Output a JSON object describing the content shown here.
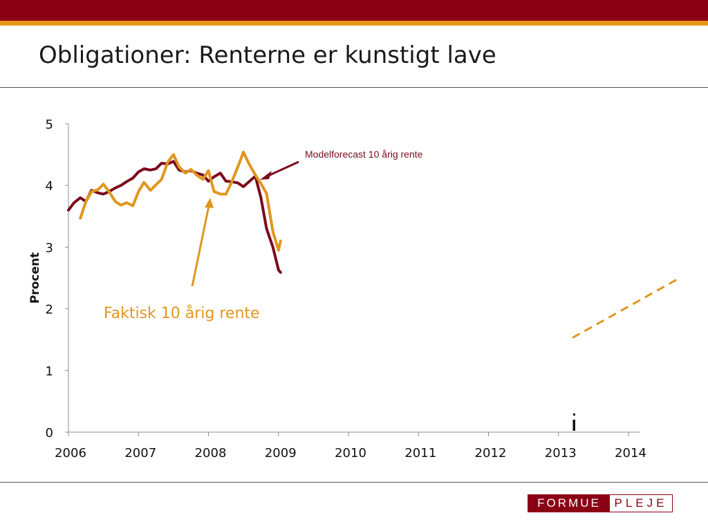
{
  "slide": {
    "title": "Obligationer: Renterne er kunstigt lave"
  },
  "colors": {
    "header_bar": "#8a0015",
    "header_stripe": "#e8951a",
    "model_series": "#7a0a1c",
    "actual_series": "#e0961e"
  },
  "logo": {
    "left_text": "FORMUE",
    "right_text": "PLEJE"
  },
  "chart_data": {
    "type": "line",
    "ylabel": "Procent",
    "xlabel": "",
    "xlim": [
      2006,
      2014
    ],
    "ylim": [
      0,
      5
    ],
    "x_ticks": [
      "2006",
      "2007",
      "2008",
      "2009",
      "2010",
      "2011",
      "2012",
      "2013",
      "2014"
    ],
    "y_ticks": [
      "0",
      "1",
      "2",
      "3",
      "4",
      "5"
    ],
    "grid": false,
    "series": [
      {
        "label_key": "model",
        "color": "#7a0a1c",
        "points": [
          [
            2006.0,
            3.6
          ],
          [
            2006.08,
            3.72
          ],
          [
            2006.17,
            3.8
          ],
          [
            2006.25,
            3.74
          ],
          [
            2006.33,
            3.92
          ],
          [
            2006.42,
            3.88
          ],
          [
            2006.5,
            3.86
          ],
          [
            2006.58,
            3.9
          ],
          [
            2006.67,
            3.96
          ],
          [
            2006.75,
            4.0
          ],
          [
            2006.83,
            4.06
          ],
          [
            2006.92,
            4.12
          ],
          [
            2007.0,
            4.22
          ],
          [
            2007.08,
            4.27
          ],
          [
            2007.17,
            4.25
          ],
          [
            2007.25,
            4.27
          ],
          [
            2007.33,
            4.36
          ],
          [
            2007.42,
            4.35
          ],
          [
            2007.5,
            4.39
          ],
          [
            2007.58,
            4.25
          ],
          [
            2007.67,
            4.22
          ],
          [
            2007.75,
            4.24
          ],
          [
            2007.83,
            4.2
          ],
          [
            2007.92,
            4.17
          ],
          [
            2008.0,
            4.07
          ],
          [
            2008.08,
            4.14
          ],
          [
            2008.17,
            4.2
          ],
          [
            2008.25,
            4.07
          ],
          [
            2008.33,
            4.06
          ],
          [
            2008.42,
            4.04
          ],
          [
            2008.5,
            3.98
          ],
          [
            2008.58,
            4.06
          ],
          [
            2008.67,
            4.15
          ],
          [
            2008.75,
            3.8
          ],
          [
            2008.83,
            3.3
          ],
          [
            2008.92,
            3.0
          ],
          [
            2009.0,
            2.63
          ],
          [
            2009.03,
            2.59
          ]
        ]
      },
      {
        "label_key": "actual",
        "color": "#e0961e",
        "points": [
          [
            2006.17,
            3.47
          ],
          [
            2006.25,
            3.74
          ],
          [
            2006.33,
            3.9
          ],
          [
            2006.42,
            3.93
          ],
          [
            2006.5,
            4.02
          ],
          [
            2006.58,
            3.9
          ],
          [
            2006.67,
            3.74
          ],
          [
            2006.75,
            3.68
          ],
          [
            2006.83,
            3.72
          ],
          [
            2006.92,
            3.67
          ],
          [
            2007.0,
            3.9
          ],
          [
            2007.08,
            4.05
          ],
          [
            2007.17,
            3.92
          ],
          [
            2007.25,
            4.01
          ],
          [
            2007.33,
            4.1
          ],
          [
            2007.42,
            4.38
          ],
          [
            2007.5,
            4.5
          ],
          [
            2007.58,
            4.3
          ],
          [
            2007.67,
            4.2
          ],
          [
            2007.75,
            4.26
          ],
          [
            2007.83,
            4.17
          ],
          [
            2007.92,
            4.1
          ],
          [
            2008.0,
            4.24
          ],
          [
            2008.08,
            3.9
          ],
          [
            2008.17,
            3.86
          ],
          [
            2008.25,
            3.86
          ],
          [
            2008.33,
            4.05
          ],
          [
            2008.42,
            4.3
          ],
          [
            2008.5,
            4.54
          ],
          [
            2008.58,
            4.35
          ],
          [
            2008.67,
            4.17
          ],
          [
            2008.75,
            4.03
          ],
          [
            2008.83,
            3.87
          ],
          [
            2008.92,
            3.25
          ],
          [
            2009.0,
            2.95
          ],
          [
            2009.03,
            3.1
          ]
        ]
      },
      {
        "label_key": "forecast",
        "color": "#e0961e",
        "dashed": true,
        "points": [
          [
            2013.2,
            1.53
          ],
          [
            2014.7,
            2.48
          ]
        ]
      }
    ],
    "annotations": {
      "model": "Modelforecast 10 årig rente",
      "actual": "Faktisk 10 årig rente"
    },
    "marker": {
      "color": "#111111",
      "x": 2013.2
    }
  }
}
